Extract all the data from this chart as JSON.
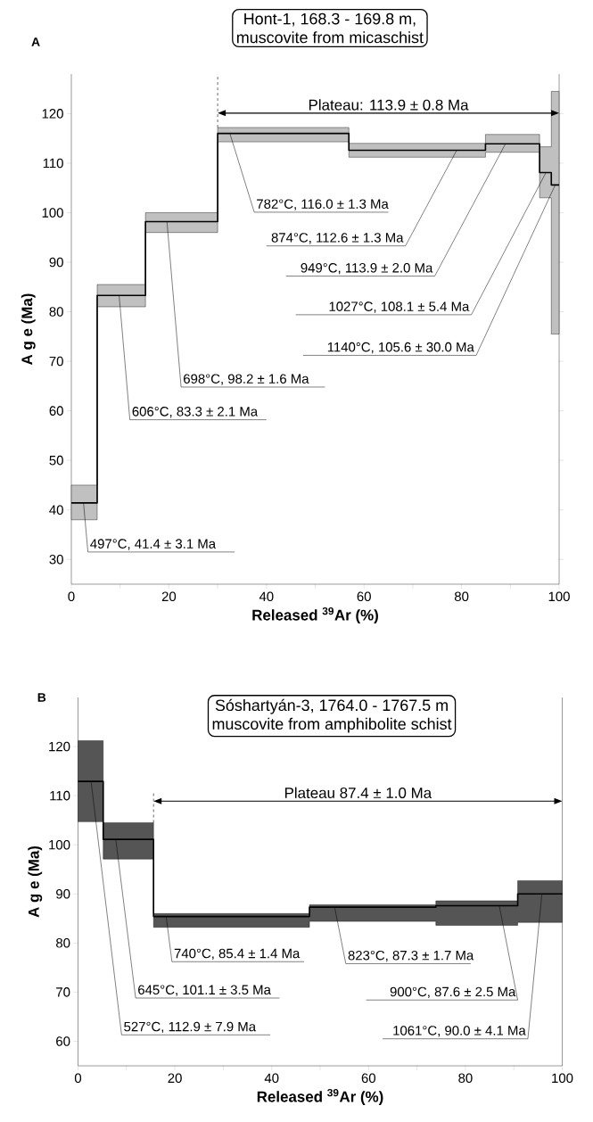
{
  "chart_data": [
    {
      "type": "step",
      "title": "Hont-1,  168.3 - 169.8 m,",
      "subtitle": "muscovite from micaschist",
      "xlabel": "Released $^{39}$Ar (%)",
      "ylabel": "A g e (Ma)",
      "xlim": [
        0,
        100
      ],
      "ylim": [
        25,
        128
      ],
      "xticks": [
        0,
        {
          "value": 10,
          "label": null
        },
        20,
        {
          "value": 30,
          "label": null
        },
        40,
        {
          "value": 50,
          "label": null
        },
        60,
        {
          "value": 70,
          "label": null
        },
        80,
        {
          "value": 90,
          "label": null
        },
        100
      ],
      "yticks": [
        30,
        40,
        50,
        60,
        70,
        80,
        90,
        100,
        110,
        120
      ],
      "series": [
        {
          "color": "#000000",
          "x": [
            0,
            5.3,
            15.2,
            30.0,
            56.9,
            84.9,
            96.0,
            98.4,
            100
          ],
          "values": [
            41.4,
            83.3,
            98.2,
            116.0,
            112.6,
            113.9,
            108.1,
            105.6,
            105.6
          ],
          "lower": [
            38.0,
            81.0,
            96.0,
            114.3,
            111.2,
            112.2,
            103.0,
            75.5,
            75.5
          ],
          "upper": [
            45.0,
            85.5,
            100.0,
            117.2,
            114.0,
            115.8,
            113.3,
            124.5,
            124.5
          ]
        }
      ],
      "annotations": [
        "A",
        "Plateau: 113.9 ± 0.8 Ma",
        {
          "text": "497°C, 41.4 ± 3.1 Ma",
          "x": 2.5,
          "y": 41.4
        },
        {
          "text": "606°C, 83.3 ± 2.1 Ma",
          "x": 9.8,
          "y": 83.3
        },
        {
          "text": "698°C, 98.2 ± 1.6 Ma",
          "x": 19.6,
          "y": 98.2
        },
        {
          "text": "782°C, 116.0 ± 1.3 Ma",
          "x": 32.5,
          "y": 116.0
        },
        {
          "text": "874°C, 112.6 ± 1.3 Ma",
          "x": 79.0,
          "y": 112.6
        },
        {
          "text": "949°C, 113.9 ± 2.0 Ma",
          "x": 89.0,
          "y": 113.9
        },
        {
          "text": "1027°C, 108.1 ± 5.4 Ma",
          "x": 97.3,
          "y": 108.1
        },
        {
          "text": "1140°C, 105.6 ± 30.0 Ma",
          "x": 99.2,
          "y": 105.6
        }
      ]
    },
    {
      "type": "step",
      "title": "Sóshartyán-3, 1764.0 - 1767.5 m",
      "subtitle": "muscovite from amphibolite schist",
      "xlabel": "Released $^{39}$Ar (%)",
      "ylabel": "A g e (Ma)",
      "xlim": [
        0,
        100
      ],
      "ylim": [
        55,
        130
      ],
      "xticks": [
        0,
        {
          "value": 10,
          "label": null
        },
        20,
        {
          "value": 30,
          "label": null
        },
        40,
        {
          "value": 50,
          "label": null
        },
        60,
        {
          "value": 70,
          "label": null
        },
        80,
        {
          "value": 90,
          "label": null
        },
        100
      ],
      "yticks": [
        60,
        70,
        80,
        90,
        100,
        110,
        120
      ],
      "series": [
        {
          "color": "#000000",
          "x": [
            0,
            5.2,
            15.6,
            47.8,
            73.9,
            90.8,
            100
          ],
          "values": [
            112.9,
            101.1,
            85.4,
            87.3,
            87.6,
            90.0,
            90.0
          ],
          "lower": [
            104.7,
            97.1,
            83.2,
            84.4,
            83.6,
            84.2,
            84.2
          ],
          "upper": [
            121.2,
            104.5,
            86.0,
            87.8,
            88.6,
            92.7,
            92.7
          ]
        }
      ],
      "annotations": [
        "B",
        "Plateau  87.4 ± 1.0 Ma",
        {
          "text": "527°C, 112.9 ± 7.9 Ma",
          "x": 2.7,
          "y": 112.9
        },
        {
          "text": "645°C, 101.1 ± 3.5 Ma",
          "x": 7.8,
          "y": 101.1
        },
        {
          "text": "740°C, 85.4 ± 1.4 Ma",
          "x": 18.2,
          "y": 85.4
        },
        {
          "text": "823°C, 87.3 ± 1.7 Ma",
          "x": 53.0,
          "y": 87.3
        },
        {
          "text": "900°C, 87.6 ± 2.5 Ma",
          "x": 87.0,
          "y": 87.6
        },
        {
          "text": "1061°C, 90.0 ± 4.1 Ma",
          "x": 95.8,
          "y": 90.0
        }
      ]
    }
  ]
}
